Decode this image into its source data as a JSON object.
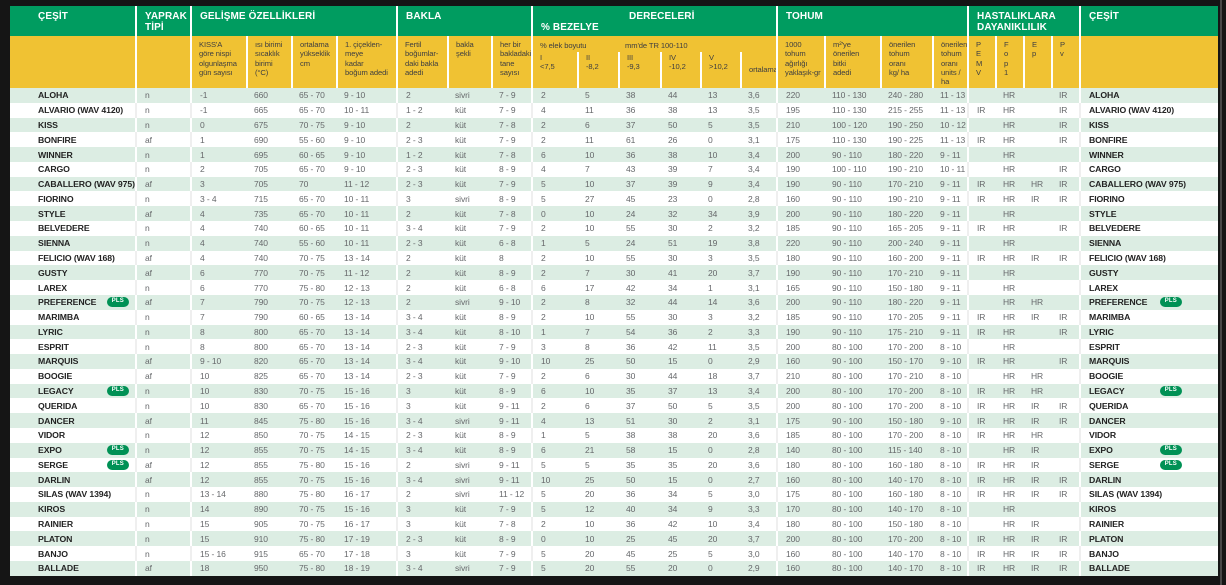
{
  "colors": {
    "green": "#009c60",
    "yellow": "#f0c233",
    "mint_row": "#dcede3",
    "badge_green": "#009155"
  },
  "badge_label": "PLS",
  "table": {
    "header": {
      "cesit": "ÇEŞİT",
      "yaprak": "YAPRAK\nTİPİ",
      "gelisme": "GELİŞME ÖZELLİKLERİ",
      "bakla": "BAKLA",
      "bezelye": "% BEZELYE",
      "dereceleri": "DERECELERİ",
      "tohum": "TOHUM",
      "hastalik": "HASTALIKLARA\nDAYANIKLILIK",
      "cesit2": "ÇEŞİT"
    },
    "sub": {
      "kissa": "KISS'A\ngöre nispi\nolgunlaşma\ngün sayısı",
      "isi": "ısı birimi\nsıcaklık\nbirimi\n(°C)",
      "yukseklik": "ortalama\nyükseklik\ncm",
      "bogum": "1. çiçeklen-\nmeye\nkadar\nboğum adedi",
      "fertil": "Fertil\nboğumlar-\ndaki bakla\nadedi",
      "sekil": "bakla\nşekli",
      "tane": "her bir\nbakladaki\ntane\nsayısı",
      "elek": "% elek boyutu",
      "tr": "mm'de TR 100-110",
      "s1": "I\n<7,5",
      "s2": "II\n-8,2",
      "s3": "III\n-9,3",
      "s4": "IV\n-10,2",
      "s5": "V\n>10,2",
      "ort": "ortalama",
      "bin": "1000\ntohum\nağırlığı\nyaklaşık-gr",
      "m2": "m²'ye\nönerilen\nbitki\nadedi",
      "kgha": "önerilen\ntohum\noranı\nkg/ ha",
      "units": "önerilen\ntohum\noranı\nunits / ha",
      "pemv": "P\nE\nM\nV",
      "fop1": "F\no\np\n1",
      "ep": "E\np",
      "pv": "P\nv"
    },
    "columns": [
      "yaprak",
      "kissa",
      "isi",
      "yukseklik",
      "bogum",
      "fertil",
      "sekil",
      "tane",
      "e1",
      "e2",
      "e3",
      "e4",
      "e5",
      "ort",
      "bin",
      "m2",
      "kgha",
      "units",
      "pemv",
      "fop1",
      "ep",
      "pv"
    ],
    "rows": [
      {
        "name": "ALOHA",
        "pls": false,
        "values": [
          "n",
          "-1",
          "660",
          "65 - 70",
          "9 - 10",
          "2",
          "sivri",
          "7 - 9",
          "2",
          "5",
          "38",
          "44",
          "13",
          "3,6",
          "220",
          "110 - 130",
          "240 - 280",
          "11 - 13",
          "",
          "HR",
          "",
          "IR"
        ]
      },
      {
        "name": "ALVARIO (WAV 4120)",
        "pls": false,
        "values": [
          "n",
          "-1",
          "665",
          "65 - 70",
          "10 - 11",
          "1 - 2",
          "küt",
          "7 - 9",
          "4",
          "11",
          "36",
          "38",
          "13",
          "3,5",
          "195",
          "110 - 130",
          "215 - 255",
          "11 - 13",
          "IR",
          "HR",
          "",
          "IR"
        ]
      },
      {
        "name": "KISS",
        "pls": false,
        "values": [
          "n",
          "0",
          "675",
          "70 - 75",
          "9 - 10",
          "2",
          "küt",
          "7 - 8",
          "2",
          "6",
          "37",
          "50",
          "5",
          "3,5",
          "210",
          "100 - 120",
          "190 - 250",
          "10 - 12",
          "",
          "HR",
          "",
          "IR"
        ]
      },
      {
        "name": "BONFIRE",
        "pls": false,
        "values": [
          "af",
          "1",
          "690",
          "55 - 60",
          "9 - 10",
          "2 - 3",
          "küt",
          "7 - 9",
          "2",
          "11",
          "61",
          "26",
          "0",
          "3,1",
          "175",
          "110 - 130",
          "190 - 225",
          "11 - 13",
          "IR",
          "HR",
          "",
          "IR"
        ]
      },
      {
        "name": "WINNER",
        "pls": false,
        "values": [
          "n",
          "1",
          "695",
          "60 - 65",
          "9 - 10",
          "1 - 2",
          "küt",
          "7 - 8",
          "6",
          "10",
          "36",
          "38",
          "10",
          "3,4",
          "200",
          "90 - 110",
          "180 - 220",
          "9 - 11",
          "",
          "HR",
          "",
          ""
        ]
      },
      {
        "name": "CARGO",
        "pls": false,
        "values": [
          "n",
          "2",
          "705",
          "65 - 70",
          "9 - 10",
          "2 - 3",
          "küt",
          "8 - 9",
          "4",
          "7",
          "43",
          "39",
          "7",
          "3,4",
          "190",
          "100 - 110",
          "190 - 210",
          "10 - 11",
          "",
          "HR",
          "",
          "IR"
        ]
      },
      {
        "name": "CABALLERO (WAV 975)",
        "pls": false,
        "values": [
          "af",
          "3",
          "705",
          "70",
          "11 - 12",
          "2 - 3",
          "küt",
          "7 - 9",
          "5",
          "10",
          "37",
          "39",
          "9",
          "3,4",
          "190",
          "90 - 110",
          "170 - 210",
          "9 - 11",
          "IR",
          "HR",
          "HR",
          "IR"
        ]
      },
      {
        "name": "FIORINO",
        "pls": false,
        "values": [
          "n",
          "3 - 4",
          "715",
          "65 - 70",
          "10 - 11",
          "3",
          "sivri",
          "8 - 9",
          "5",
          "27",
          "45",
          "23",
          "0",
          "2,8",
          "160",
          "90 - 110",
          "190 - 210",
          "9 - 11",
          "IR",
          "HR",
          "IR",
          "IR"
        ]
      },
      {
        "name": "STYLE",
        "pls": false,
        "values": [
          "af",
          "4",
          "735",
          "65 - 70",
          "10 - 11",
          "2",
          "küt",
          "7 - 8",
          "0",
          "10",
          "24",
          "32",
          "34",
          "3,9",
          "200",
          "90 - 110",
          "180 - 220",
          "9 - 11",
          "",
          "HR",
          "",
          ""
        ]
      },
      {
        "name": "BELVEDERE",
        "pls": false,
        "values": [
          "n",
          "4",
          "740",
          "60 - 65",
          "10 - 11",
          "3 - 4",
          "küt",
          "7 - 9",
          "2",
          "10",
          "55",
          "30",
          "2",
          "3,2",
          "185",
          "90 - 110",
          "165 - 205",
          "9 - 11",
          "IR",
          "HR",
          "",
          "IR"
        ]
      },
      {
        "name": "SIENNA",
        "pls": false,
        "values": [
          "n",
          "4",
          "740",
          "55 - 60",
          "10 - 11",
          "2 - 3",
          "küt",
          "6 - 8",
          "1",
          "5",
          "24",
          "51",
          "19",
          "3,8",
          "220",
          "90 - 110",
          "200 - 240",
          "9 - 11",
          "",
          "HR",
          "",
          ""
        ]
      },
      {
        "name": "FELICIO (WAV 168)",
        "pls": false,
        "values": [
          "af",
          "4",
          "740",
          "70 - 75",
          "13 - 14",
          "2",
          "küt",
          "8",
          "2",
          "10",
          "55",
          "30",
          "3",
          "3,5",
          "180",
          "90 - 110",
          "160 - 200",
          "9 - 11",
          "IR",
          "HR",
          "IR",
          "IR"
        ]
      },
      {
        "name": "GUSTY",
        "pls": false,
        "values": [
          "af",
          "6",
          "770",
          "70 - 75",
          "11 - 12",
          "2",
          "küt",
          "8 - 9",
          "2",
          "7",
          "30",
          "41",
          "20",
          "3,7",
          "190",
          "90 - 110",
          "170 - 210",
          "9 - 11",
          "",
          "HR",
          "",
          ""
        ]
      },
      {
        "name": "LAREX",
        "pls": false,
        "values": [
          "n",
          "6",
          "770",
          "75 - 80",
          "12 - 13",
          "2",
          "küt",
          "6 - 8",
          "6",
          "17",
          "42",
          "34",
          "1",
          "3,1",
          "165",
          "90 - 110",
          "150 - 180",
          "9 - 11",
          "",
          "HR",
          "",
          ""
        ]
      },
      {
        "name": "PREFERENCE",
        "pls": true,
        "values": [
          "af",
          "7",
          "790",
          "70 - 75",
          "12 - 13",
          "2",
          "sivri",
          "9 - 10",
          "2",
          "8",
          "32",
          "44",
          "14",
          "3,6",
          "200",
          "90 - 110",
          "180 - 220",
          "9 - 11",
          "",
          "HR",
          "HR",
          ""
        ]
      },
      {
        "name": "MARIMBA",
        "pls": false,
        "values": [
          "n",
          "7",
          "790",
          "60 - 65",
          "13 - 14",
          "3 - 4",
          "küt",
          "8 - 9",
          "2",
          "10",
          "55",
          "30",
          "3",
          "3,2",
          "185",
          "90 - 110",
          "170 - 205",
          "9 - 11",
          "IR",
          "HR",
          "IR",
          "IR"
        ]
      },
      {
        "name": "LYRIC",
        "pls": false,
        "values": [
          "n",
          "8",
          "800",
          "65 - 70",
          "13 - 14",
          "3 - 4",
          "küt",
          "8 - 10",
          "1",
          "7",
          "54",
          "36",
          "2",
          "3,3",
          "190",
          "90 - 110",
          "175 - 210",
          "9 - 11",
          "IR",
          "HR",
          "",
          "IR"
        ]
      },
      {
        "name": "ESPRIT",
        "pls": false,
        "values": [
          "n",
          "8",
          "800",
          "65 - 70",
          "13 - 14",
          "2 - 3",
          "küt",
          "7 - 9",
          "3",
          "8",
          "36",
          "42",
          "11",
          "3,5",
          "200",
          "80 - 100",
          "170 - 200",
          "8 - 10",
          "",
          "HR",
          "",
          ""
        ]
      },
      {
        "name": "MARQUIS",
        "pls": false,
        "values": [
          "af",
          "9 - 10",
          "820",
          "65 - 70",
          "13 - 14",
          "3 - 4",
          "küt",
          "9 - 10",
          "10",
          "25",
          "50",
          "15",
          "0",
          "2,9",
          "160",
          "90 - 100",
          "150 - 170",
          "9 - 10",
          "IR",
          "HR",
          "",
          "IR"
        ]
      },
      {
        "name": "BOOGIE",
        "pls": false,
        "values": [
          "af",
          "10",
          "825",
          "65 - 70",
          "13 - 14",
          "2 - 3",
          "küt",
          "7 - 9",
          "2",
          "6",
          "30",
          "44",
          "18",
          "3,7",
          "210",
          "80 - 100",
          "170 - 210",
          "8 - 10",
          "",
          "HR",
          "HR",
          ""
        ]
      },
      {
        "name": "LEGACY",
        "pls": true,
        "values": [
          "n",
          "10",
          "830",
          "70 - 75",
          "15 - 16",
          "3",
          "küt",
          "8 - 9",
          "6",
          "10",
          "35",
          "37",
          "13",
          "3,4",
          "200",
          "80 - 100",
          "170 - 200",
          "8 - 10",
          "IR",
          "HR",
          "HR",
          ""
        ]
      },
      {
        "name": "QUERIDA",
        "pls": false,
        "values": [
          "n",
          "10",
          "830",
          "65 - 70",
          "15 - 16",
          "3",
          "küt",
          "9 - 11",
          "2",
          "6",
          "37",
          "50",
          "5",
          "3,5",
          "200",
          "80 - 100",
          "170 - 200",
          "8 - 10",
          "IR",
          "HR",
          "IR",
          "IR"
        ]
      },
      {
        "name": "DANCER",
        "pls": false,
        "values": [
          "af",
          "11",
          "845",
          "75 - 80",
          "15 - 16",
          "3 - 4",
          "sivri",
          "9 - 11",
          "4",
          "13",
          "51",
          "30",
          "2",
          "3,1",
          "175",
          "90 - 100",
          "150 - 180",
          "9 - 10",
          "IR",
          "HR",
          "IR",
          "IR"
        ]
      },
      {
        "name": "VIDOR",
        "pls": false,
        "values": [
          "n",
          "12",
          "850",
          "70 - 75",
          "14 - 15",
          "2 - 3",
          "küt",
          "8 - 9",
          "1",
          "5",
          "38",
          "38",
          "20",
          "3,6",
          "185",
          "80 - 100",
          "170 - 200",
          "8 - 10",
          "IR",
          "HR",
          "HR",
          ""
        ]
      },
      {
        "name": "EXPO",
        "pls": true,
        "values": [
          "n",
          "12",
          "855",
          "70 - 75",
          "14 - 15",
          "3 - 4",
          "küt",
          "8 - 9",
          "6",
          "21",
          "58",
          "15",
          "0",
          "2,8",
          "140",
          "80 - 100",
          "115 - 140",
          "8 - 10",
          "",
          "HR",
          "IR",
          ""
        ]
      },
      {
        "name": "SERGE",
        "pls": true,
        "values": [
          "af",
          "12",
          "855",
          "75 - 80",
          "15 - 16",
          "2",
          "sivri",
          "9 - 11",
          "5",
          "5",
          "35",
          "35",
          "20",
          "3,6",
          "180",
          "80 - 100",
          "160 - 180",
          "8 - 10",
          "IR",
          "HR",
          "IR",
          ""
        ]
      },
      {
        "name": "DARLIN",
        "pls": false,
        "values": [
          "af",
          "12",
          "855",
          "70 - 75",
          "15 - 16",
          "3 - 4",
          "sivri",
          "9 - 11",
          "10",
          "25",
          "50",
          "15",
          "0",
          "2,7",
          "160",
          "80 - 100",
          "140 - 170",
          "8 - 10",
          "IR",
          "HR",
          "IR",
          "IR"
        ]
      },
      {
        "name": "SILAS (WAV 1394)",
        "pls": false,
        "values": [
          "n",
          "13 - 14",
          "880",
          "75 - 80",
          "16 - 17",
          "2",
          "sivri",
          "11 - 12",
          "5",
          "20",
          "36",
          "34",
          "5",
          "3,0",
          "175",
          "80 - 100",
          "160 - 180",
          "8 - 10",
          "IR",
          "HR",
          "IR",
          "IR"
        ]
      },
      {
        "name": "KIROS",
        "pls": false,
        "values": [
          "n",
          "14",
          "890",
          "70 - 75",
          "15 - 16",
          "3",
          "küt",
          "7 - 9",
          "5",
          "12",
          "40",
          "34",
          "9",
          "3,3",
          "170",
          "80 - 100",
          "140 - 170",
          "8 - 10",
          "",
          "HR",
          "",
          ""
        ]
      },
      {
        "name": "RAINIER",
        "pls": false,
        "values": [
          "n",
          "15",
          "905",
          "70 - 75",
          "16 - 17",
          "3",
          "küt",
          "7 - 8",
          "2",
          "10",
          "36",
          "42",
          "10",
          "3,4",
          "180",
          "80 - 100",
          "150 - 180",
          "8 - 10",
          "",
          "HR",
          "IR",
          ""
        ]
      },
      {
        "name": "PLATON",
        "pls": false,
        "values": [
          "n",
          "15",
          "910",
          "75 - 80",
          "17 - 19",
          "2 - 3",
          "küt",
          "8 - 9",
          "0",
          "10",
          "25",
          "45",
          "20",
          "3,7",
          "200",
          "80 - 100",
          "170 - 200",
          "8 - 10",
          "IR",
          "HR",
          "IR",
          "IR"
        ]
      },
      {
        "name": "BANJO",
        "pls": false,
        "values": [
          "n",
          "15 - 16",
          "915",
          "65 - 70",
          "17 - 18",
          "3",
          "küt",
          "7 - 9",
          "5",
          "20",
          "45",
          "25",
          "5",
          "3,0",
          "160",
          "80 - 100",
          "140 - 170",
          "8 - 10",
          "IR",
          "HR",
          "IR",
          "IR"
        ]
      },
      {
        "name": "BALLADE",
        "pls": false,
        "values": [
          "af",
          "18",
          "950",
          "75 - 80",
          "18 - 19",
          "3 - 4",
          "sivri",
          "7 - 9",
          "5",
          "20",
          "55",
          "20",
          "0",
          "2,9",
          "160",
          "80 - 100",
          "140 - 170",
          "8 - 10",
          "IR",
          "HR",
          "IR",
          "IR"
        ]
      }
    ]
  }
}
